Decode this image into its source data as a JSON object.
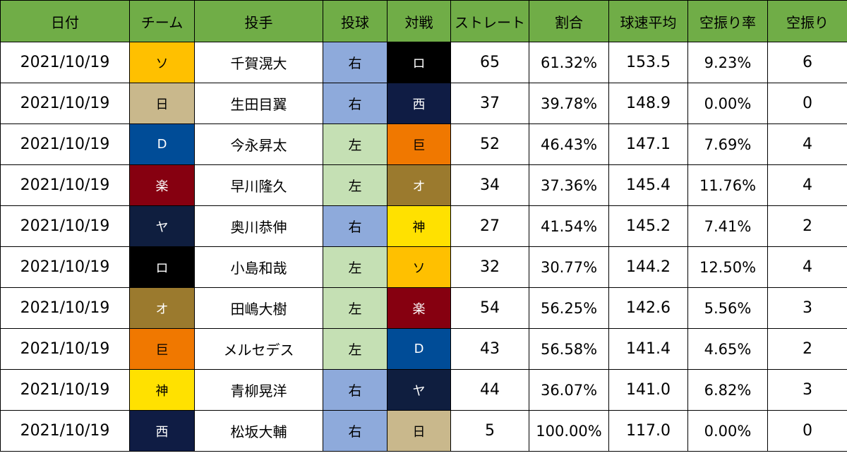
{
  "headers": [
    "日付",
    "チーム",
    "投手",
    "投球",
    "対戦",
    "ストレート",
    "割合",
    "球速平均",
    "空振り率",
    "空振り"
  ],
  "team_colors": {
    "ソ": {
      "bg": "#ffc000",
      "fg": "#000000"
    },
    "日": {
      "bg": "#c9b88c",
      "fg": "#000000"
    },
    "D": {
      "bg": "#004c97",
      "fg": "#ffffff"
    },
    "楽": {
      "bg": "#860010",
      "fg": "#ffffff"
    },
    "ヤ": {
      "bg": "#0f1e3f",
      "fg": "#ffffff"
    },
    "ロ": {
      "bg": "#000000",
      "fg": "#ffffff"
    },
    "オ": {
      "bg": "#9b7a2e",
      "fg": "#ffffff"
    },
    "巨": {
      "bg": "#f07800",
      "fg": "#000000"
    },
    "神": {
      "bg": "#ffe100",
      "fg": "#000000"
    },
    "西": {
      "bg": "#0f1c44",
      "fg": "#ffffff"
    }
  },
  "hand_colors": {
    "右": "#8eaadb",
    "左": "#c5e0b4"
  },
  "rows": [
    {
      "date": "2021/10/19",
      "team": "ソ",
      "pitcher": "千賀滉大",
      "hand": "右",
      "opponent": "ロ",
      "straight": "65",
      "ratio": "61.32%",
      "avg_speed": "153.5",
      "whiff_rate": "9.23%",
      "whiffs": "6"
    },
    {
      "date": "2021/10/19",
      "team": "日",
      "pitcher": "生田目翼",
      "hand": "右",
      "opponent": "西",
      "straight": "37",
      "ratio": "39.78%",
      "avg_speed": "148.9",
      "whiff_rate": "0.00%",
      "whiffs": "0"
    },
    {
      "date": "2021/10/19",
      "team": "D",
      "pitcher": "今永昇太",
      "hand": "左",
      "opponent": "巨",
      "straight": "52",
      "ratio": "46.43%",
      "avg_speed": "147.1",
      "whiff_rate": "7.69%",
      "whiffs": "4"
    },
    {
      "date": "2021/10/19",
      "team": "楽",
      "pitcher": "早川隆久",
      "hand": "左",
      "opponent": "オ",
      "straight": "34",
      "ratio": "37.36%",
      "avg_speed": "145.4",
      "whiff_rate": "11.76%",
      "whiffs": "4"
    },
    {
      "date": "2021/10/19",
      "team": "ヤ",
      "pitcher": "奥川恭伸",
      "hand": "右",
      "opponent": "神",
      "straight": "27",
      "ratio": "41.54%",
      "avg_speed": "145.2",
      "whiff_rate": "7.41%",
      "whiffs": "2"
    },
    {
      "date": "2021/10/19",
      "team": "ロ",
      "pitcher": "小島和哉",
      "hand": "左",
      "opponent": "ソ",
      "straight": "32",
      "ratio": "30.77%",
      "avg_speed": "144.2",
      "whiff_rate": "12.50%",
      "whiffs": "4"
    },
    {
      "date": "2021/10/19",
      "team": "オ",
      "pitcher": "田嶋大樹",
      "hand": "左",
      "opponent": "楽",
      "straight": "54",
      "ratio": "56.25%",
      "avg_speed": "142.6",
      "whiff_rate": "5.56%",
      "whiffs": "3"
    },
    {
      "date": "2021/10/19",
      "team": "巨",
      "pitcher": "メルセデス",
      "hand": "左",
      "opponent": "D",
      "straight": "43",
      "ratio": "56.58%",
      "avg_speed": "141.4",
      "whiff_rate": "4.65%",
      "whiffs": "2"
    },
    {
      "date": "2021/10/19",
      "team": "神",
      "pitcher": "青柳晃洋",
      "hand": "右",
      "opponent": "ヤ",
      "straight": "44",
      "ratio": "36.07%",
      "avg_speed": "141.0",
      "whiff_rate": "6.82%",
      "whiffs": "3"
    },
    {
      "date": "2021/10/19",
      "team": "西",
      "pitcher": "松坂大輔",
      "hand": "右",
      "opponent": "日",
      "straight": "5",
      "ratio": "100.00%",
      "avg_speed": "117.0",
      "whiff_rate": "0.00%",
      "whiffs": "0"
    }
  ]
}
